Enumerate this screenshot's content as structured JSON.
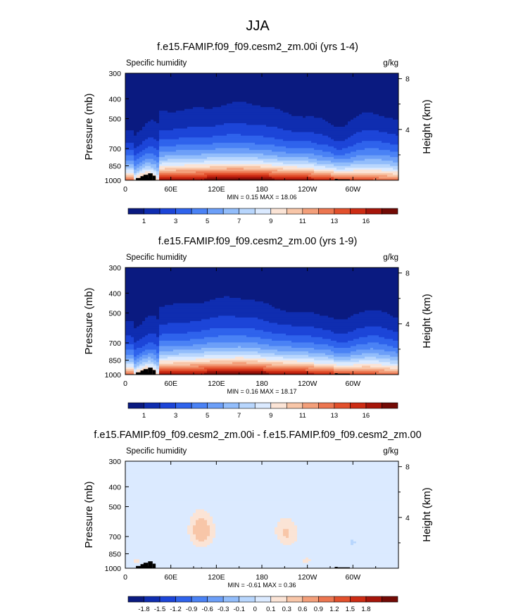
{
  "page_title": "JJA",
  "chart_data": [
    {
      "type": "heatmap",
      "title": "f.e15.FAMIP.f09_f09.cesm2_zm.00i (yrs 1-4)",
      "left_label": "Specific humidity",
      "units": "g/kg",
      "ylabel": "Pressure (mb)",
      "ylabel_right": "Height (km)",
      "xticks": [
        "0",
        "60E",
        "120E",
        "180",
        "120W",
        "60W"
      ],
      "xtick_values": [
        0,
        60,
        120,
        180,
        240,
        300
      ],
      "xlim": [
        0,
        360
      ],
      "yticks": [
        "300",
        "400",
        "500",
        "700",
        "850",
        "1000"
      ],
      "ytick_values": [
        300,
        400,
        500,
        700,
        850,
        1000
      ],
      "ylim": [
        1000,
        300
      ],
      "height_ticks": [
        "8",
        "4"
      ],
      "height_values": [
        8,
        4
      ],
      "stats": "MIN =  0.15  MAX =  18.06",
      "colorbar_labels": [
        "1",
        "3",
        "5",
        "7",
        "9",
        "11",
        "13",
        "16"
      ],
      "colorbar_colors": [
        "#0a1a80",
        "#0f2db0",
        "#1c45d8",
        "#2f63ec",
        "#4a82f5",
        "#6c9ff8",
        "#92bdfb",
        "#b8d6fd",
        "#dbeaff",
        "#fbe4d6",
        "#f8c6a8",
        "#f39f7a",
        "#ec7650",
        "#e2502c",
        "#cd2c14",
        "#a6150a",
        "#730a05"
      ],
      "field": "humidity"
    },
    {
      "type": "heatmap",
      "title": "f.e15.FAMIP.f09_f09.cesm2_zm.00 (yrs 1-9)",
      "left_label": "Specific humidity",
      "units": "g/kg",
      "ylabel": "Pressure (mb)",
      "ylabel_right": "Height (km)",
      "xticks": [
        "0",
        "60E",
        "120E",
        "180",
        "120W",
        "60W"
      ],
      "xtick_values": [
        0,
        60,
        120,
        180,
        240,
        300
      ],
      "xlim": [
        0,
        360
      ],
      "yticks": [
        "300",
        "400",
        "500",
        "700",
        "850",
        "1000"
      ],
      "ytick_values": [
        300,
        400,
        500,
        700,
        850,
        1000
      ],
      "ylim": [
        1000,
        300
      ],
      "height_ticks": [
        "8",
        "4"
      ],
      "height_values": [
        8,
        4
      ],
      "stats": "MIN =  0.16  MAX =  18.17",
      "colorbar_labels": [
        "1",
        "3",
        "5",
        "7",
        "9",
        "11",
        "13",
        "16"
      ],
      "colorbar_colors": [
        "#0a1a80",
        "#0f2db0",
        "#1c45d8",
        "#2f63ec",
        "#4a82f5",
        "#6c9ff8",
        "#92bdfb",
        "#b8d6fd",
        "#dbeaff",
        "#fbe4d6",
        "#f8c6a8",
        "#f39f7a",
        "#ec7650",
        "#e2502c",
        "#cd2c14",
        "#a6150a",
        "#730a05"
      ],
      "field": "humidity"
    },
    {
      "type": "heatmap",
      "title": "f.e15.FAMIP.f09_f09.cesm2_zm.00i - f.e15.FAMIP.f09_f09.cesm2_zm.00",
      "left_label": "Specific humidity",
      "units": "g/kg",
      "ylabel": "Pressure (mb)",
      "ylabel_right": "Height (km)",
      "xticks": [
        "0",
        "60E",
        "120E",
        "180",
        "120W",
        "60W"
      ],
      "xtick_values": [
        0,
        60,
        120,
        180,
        240,
        300
      ],
      "xlim": [
        0,
        360
      ],
      "yticks": [
        "300",
        "400",
        "500",
        "700",
        "850",
        "1000"
      ],
      "ytick_values": [
        300,
        400,
        500,
        700,
        850,
        1000
      ],
      "ylim": [
        1000,
        300
      ],
      "height_ticks": [
        "8",
        "4"
      ],
      "height_values": [
        8,
        4
      ],
      "stats": "MIN = -0.61  MAX =  0.36",
      "colorbar_labels": [
        "-1.8",
        "-1.5",
        "-1.2",
        "-0.9",
        "-0.6",
        "-0.3",
        "-0.1",
        "0",
        "0.1",
        "0.3",
        "0.6",
        "0.9",
        "1.2",
        "1.5",
        "1.8"
      ],
      "colorbar_colors": [
        "#0a1a80",
        "#0f2db0",
        "#1c45d8",
        "#2f63ec",
        "#4a82f5",
        "#6c9ff8",
        "#92bdfb",
        "#b8d6fd",
        "#dbeaff",
        "#fbe4d6",
        "#f8c6a8",
        "#f39f7a",
        "#ec7650",
        "#e2502c",
        "#cd2c14",
        "#a6150a",
        "#730a05"
      ],
      "field": "difference"
    }
  ]
}
